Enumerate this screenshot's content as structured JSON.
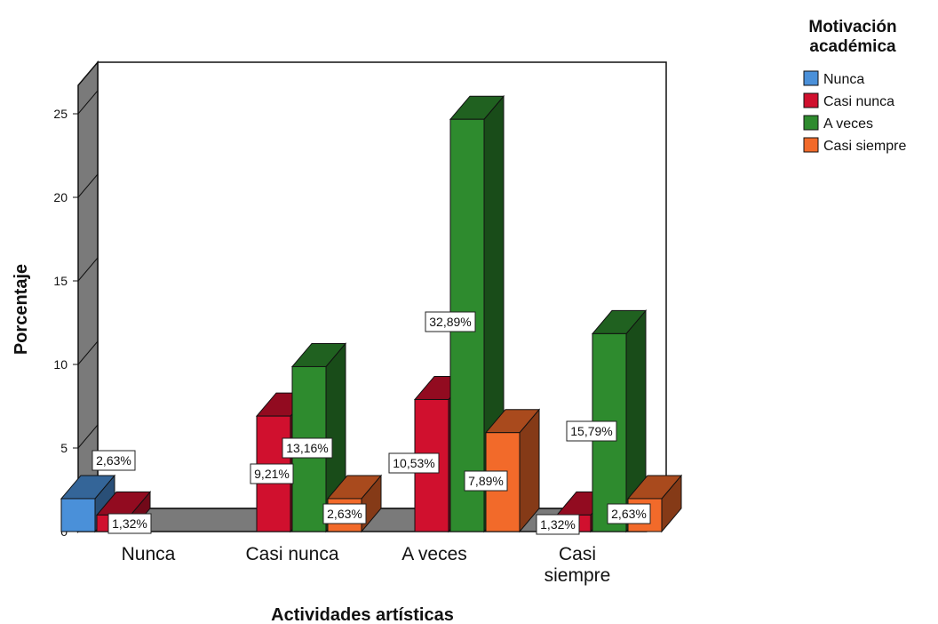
{
  "chart_data": {
    "type": "bar",
    "xlabel": "Actividades artísticas",
    "ylabel": "Porcentaje",
    "ylim": [
      0,
      25
    ],
    "yticks": [
      0,
      5,
      10,
      15,
      20,
      25
    ],
    "grid": false,
    "legend_placement": "top-right",
    "legend_title": "Motivación académica",
    "categories": [
      "Nunca",
      "Casi nunca",
      "A veces",
      "Casi siempre"
    ],
    "series": [
      {
        "name": "Nunca",
        "color": "#4a90d9",
        "values": [
          1.97,
          0,
          0,
          0
        ],
        "labels": [
          "2,63%",
          "",
          "",
          ""
        ]
      },
      {
        "name": "Casi nunca",
        "color": "#d0102e",
        "values": [
          0.99,
          6.91,
          7.9,
          0.99
        ],
        "labels": [
          "1,32%",
          "9,21%",
          "10,53%",
          "1,32%"
        ]
      },
      {
        "name": "A veces",
        "color": "#2e8b2e",
        "values": [
          0,
          9.87,
          24.67,
          11.84
        ],
        "labels": [
          "",
          "13,16%",
          "32,89%",
          "15,79%"
        ]
      },
      {
        "name": "Casi siempre",
        "color": "#f26a2a",
        "values": [
          0,
          1.97,
          5.92,
          1.97
        ],
        "labels": [
          "",
          "2,63%",
          "7,89%",
          "2,63%"
        ]
      }
    ]
  }
}
